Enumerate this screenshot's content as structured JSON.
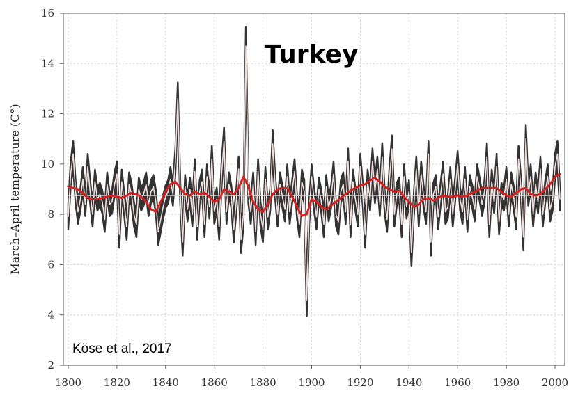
{
  "chart_data": {
    "type": "line",
    "title": "Turkey",
    "annotation": "Köse et al., 2017",
    "xlabel": "",
    "ylabel": "March–April temperature (C°)",
    "xlim": [
      1798,
      2004
    ],
    "ylim": [
      2,
      16
    ],
    "xticks": [
      1800,
      1820,
      1840,
      1860,
      1880,
      1900,
      1920,
      1940,
      1960,
      1980,
      2000
    ],
    "yticks": [
      2,
      4,
      6,
      8,
      10,
      12,
      14,
      16
    ],
    "grid": true,
    "mean_line": 8.75,
    "colors": {
      "band": "#333333",
      "annual": "#f0dede",
      "smooth": "#d42020",
      "grid": "#cccccc"
    },
    "series": [
      {
        "role": "annual",
        "x": [
          1800,
          1801,
          1802,
          1803,
          1804,
          1805,
          1806,
          1807,
          1808,
          1809,
          1810,
          1811,
          1812,
          1813,
          1814,
          1815,
          1816,
          1817,
          1818,
          1819,
          1820,
          1821,
          1822,
          1823,
          1824,
          1825,
          1826,
          1827,
          1828,
          1829,
          1830,
          1831,
          1832,
          1833,
          1834,
          1835,
          1836,
          1837,
          1838,
          1839,
          1840,
          1841,
          1842,
          1843,
          1844,
          1845,
          1846,
          1847,
          1848,
          1849,
          1850,
          1851,
          1852,
          1853,
          1854,
          1855,
          1856,
          1857,
          1858,
          1859,
          1860,
          1861,
          1862,
          1863,
          1864,
          1865,
          1866,
          1867,
          1868,
          1869,
          1870,
          1871,
          1872,
          1873,
          1874,
          1875,
          1876,
          1877,
          1878,
          1879,
          1880,
          1881,
          1882,
          1883,
          1884,
          1885,
          1886,
          1887,
          1888,
          1889,
          1890,
          1891,
          1892,
          1893,
          1894,
          1895,
          1896,
          1897,
          1898,
          1899,
          1900,
          1901,
          1902,
          1903,
          1904,
          1905,
          1906,
          1907,
          1908,
          1909,
          1910,
          1911,
          1912,
          1913,
          1914,
          1915,
          1916,
          1917,
          1918,
          1919,
          1920,
          1921,
          1922,
          1923,
          1924,
          1925,
          1926,
          1927,
          1928,
          1929,
          1930,
          1931,
          1932,
          1933,
          1934,
          1935,
          1936,
          1937,
          1938,
          1939,
          1940,
          1941,
          1942,
          1943,
          1944,
          1945,
          1946,
          1947,
          1948,
          1949,
          1950,
          1951,
          1952,
          1953,
          1954,
          1955,
          1956,
          1957,
          1958,
          1959,
          1960,
          1961,
          1962,
          1963,
          1964,
          1965,
          1966,
          1967,
          1968,
          1969,
          1970,
          1971,
          1972,
          1973,
          1974,
          1975,
          1976,
          1977,
          1978,
          1979,
          1980,
          1981,
          1982,
          1983,
          1984,
          1985,
          1986,
          1987,
          1988,
          1989,
          1990,
          1991,
          1992,
          1993,
          1994,
          1995,
          1996,
          1997,
          1998,
          1999,
          2000,
          2001,
          2002
        ],
        "y": [
          7.9,
          9.6,
          10.4,
          8.9,
          8.1,
          8.6,
          9.4,
          8.4,
          9.9,
          8.9,
          8.0,
          9.3,
          8.6,
          8.8,
          8.5,
          7.8,
          9.2,
          8.4,
          8.5,
          9.2,
          9.6,
          7.2,
          9.3,
          8.4,
          7.5,
          9.2,
          8.8,
          8.0,
          7.6,
          9.0,
          8.6,
          8.8,
          9.2,
          8.4,
          8.9,
          9.1,
          8.5,
          7.3,
          7.8,
          8.3,
          8.7,
          8.9,
          9.4,
          8.8,
          10.1,
          12.6,
          8.9,
          6.9,
          9.1,
          8.2,
          9.0,
          8.0,
          9.7,
          7.5,
          8.9,
          9.3,
          7.6,
          9.5,
          8.3,
          10.2,
          8.1,
          8.6,
          7.5,
          9.6,
          10.9,
          8.1,
          9.2,
          8.7,
          7.4,
          8.5,
          9.8,
          7.0,
          8.0,
          14.7,
          8.9,
          8.1,
          9.2,
          7.3,
          9.7,
          8.0,
          7.4,
          9.4,
          7.9,
          8.6,
          10.8,
          9.1,
          8.0,
          9.2,
          8.7,
          8.2,
          9.5,
          8.1,
          8.9,
          9.7,
          8.3,
          7.6,
          9.3,
          8.9,
          4.6,
          8.1,
          9.5,
          8.6,
          7.9,
          9.0,
          8.5,
          7.6,
          9.1,
          8.2,
          8.7,
          9.6,
          8.0,
          7.7,
          8.9,
          9.2,
          8.1,
          10.1,
          7.6,
          9.3,
          8.6,
          8.0,
          9.9,
          8.8,
          7.2,
          9.3,
          8.6,
          10.1,
          8.9,
          9.8,
          8.4,
          10.3,
          8.5,
          7.8,
          9.4,
          10.6,
          8.0,
          8.8,
          9.0,
          7.6,
          9.5,
          8.3,
          8.9,
          6.5,
          8.4,
          9.8,
          8.0,
          9.6,
          8.7,
          8.1,
          10.4,
          6.9,
          8.8,
          9.1,
          7.9,
          8.8,
          9.6,
          8.1,
          8.3,
          9.4,
          8.0,
          9.0,
          10.0,
          8.6,
          8.1,
          9.4,
          7.8,
          9.1,
          8.7,
          8.2,
          9.5,
          9.0,
          8.4,
          8.9,
          10.3,
          7.6,
          9.3,
          8.5,
          9.9,
          7.7,
          8.8,
          8.6,
          9.4,
          8.0,
          9.2,
          8.7,
          7.9,
          10.2,
          9.0,
          7.1,
          11.0,
          8.8,
          9.5,
          8.0,
          9.2,
          8.5,
          9.8,
          8.0,
          8.9,
          9.5,
          8.2,
          8.6,
          9.9,
          10.4,
          8.6
        ]
      },
      {
        "role": "smoothed",
        "x": [
          1800,
          1802,
          1804,
          1806,
          1808,
          1810,
          1812,
          1814,
          1816,
          1818,
          1820,
          1822,
          1824,
          1826,
          1828,
          1830,
          1832,
          1834,
          1836,
          1838,
          1840,
          1842,
          1844,
          1846,
          1848,
          1850,
          1852,
          1854,
          1856,
          1858,
          1860,
          1862,
          1864,
          1866,
          1868,
          1870,
          1872,
          1874,
          1876,
          1878,
          1880,
          1882,
          1884,
          1886,
          1888,
          1890,
          1892,
          1894,
          1896,
          1898,
          1900,
          1902,
          1904,
          1906,
          1908,
          1910,
          1912,
          1914,
          1916,
          1918,
          1920,
          1922,
          1924,
          1926,
          1928,
          1930,
          1932,
          1934,
          1936,
          1938,
          1940,
          1942,
          1944,
          1946,
          1948,
          1950,
          1952,
          1954,
          1956,
          1958,
          1960,
          1962,
          1964,
          1966,
          1968,
          1970,
          1972,
          1974,
          1976,
          1978,
          1980,
          1982,
          1984,
          1986,
          1988,
          1990,
          1992,
          1994,
          1996,
          1998,
          2000,
          2002
        ],
        "y": [
          9.1,
          9.05,
          9.0,
          8.85,
          8.65,
          8.6,
          8.6,
          8.65,
          8.7,
          8.75,
          8.7,
          8.65,
          8.75,
          8.85,
          8.8,
          8.7,
          8.5,
          8.2,
          8.1,
          8.5,
          8.9,
          9.2,
          9.3,
          9.05,
          8.8,
          8.75,
          8.9,
          8.8,
          8.85,
          8.7,
          8.5,
          8.6,
          9.0,
          8.9,
          8.8,
          9.05,
          9.5,
          9.1,
          8.5,
          8.2,
          8.1,
          8.4,
          8.8,
          9.0,
          9.05,
          9.05,
          8.7,
          8.3,
          7.95,
          8.0,
          8.6,
          8.5,
          8.3,
          8.2,
          8.35,
          8.5,
          8.65,
          8.8,
          8.95,
          9.05,
          9.15,
          9.2,
          9.35,
          9.45,
          9.3,
          9.1,
          9.0,
          8.9,
          8.95,
          8.7,
          8.5,
          8.3,
          8.4,
          8.6,
          8.65,
          8.55,
          8.65,
          8.75,
          8.7,
          8.7,
          8.75,
          8.7,
          8.75,
          8.85,
          8.95,
          9.05,
          9.05,
          9.05,
          9.05,
          8.9,
          8.75,
          8.7,
          8.85,
          9.0,
          9.05,
          8.8,
          8.75,
          8.8,
          9.0,
          9.2,
          9.5,
          9.6
        ]
      }
    ]
  }
}
